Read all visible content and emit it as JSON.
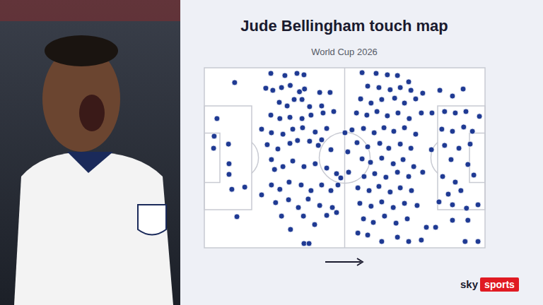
{
  "chart_data": {
    "type": "scatter",
    "title": "Jude Bellingham touch map",
    "subtitle": "World Cup 2026",
    "color": "#1f3a93",
    "tick_labels": false,
    "xlim": [
      0,
      100
    ],
    "ylim": [
      0,
      100
    ],
    "marker": "circle",
    "x": [
      10.8,
      4.5,
      3.5,
      3.3,
      8.6,
      8.8,
      8.8,
      9.8,
      14.4,
      11.6,
      23.7,
      28.7,
      33,
      35.5,
      21.9,
      24.4,
      27.5,
      30.6,
      33.9,
      35.7,
      41.1,
      44.8,
      26.7,
      29.5,
      32,
      34.8,
      37.5,
      41.8,
      46.1,
      23.7,
      26.9,
      30.5,
      34.8,
      38,
      42.3,
      20.4,
      23.9,
      28,
      31.5,
      35,
      39.5,
      43.6,
      22.4,
      26.2,
      30.5,
      33.2,
      37.5,
      40.6,
      45.1,
      23.9,
      25,
      28,
      31.5,
      35.5,
      39.5,
      43.6,
      47.1,
      20.4,
      23.9,
      26.9,
      30.2,
      34.5,
      38,
      41.8,
      45.1,
      47.6,
      25.4,
      30,
      33.5,
      37,
      41.1,
      45.6,
      27.5,
      30.7,
      35.3,
      39.3,
      35.5,
      37.3,
      43.6,
      47.1,
      41.8,
      50.1,
      48.6,
      51.1,
      56.2,
      61.2,
      65.2,
      68.8,
      72.8,
      58.2,
      62.2,
      66.2,
      69.8,
      73.6,
      77.8,
      55.7,
      59.4,
      63.2,
      67.8,
      71.3,
      75.3,
      54.2,
      57.9,
      61.5,
      65.2,
      69,
      73,
      77.3,
      81.1,
      52.6,
      56.7,
      60.5,
      64,
      67.5,
      71.3,
      75.3,
      54.4,
      58.2,
      62.5,
      65.7,
      69.8,
      73.6,
      56.2,
      59.2,
      63.2,
      67.3,
      70.8,
      74.6,
      51.4,
      56.9,
      60.7,
      64.7,
      68.8,
      72.8,
      77.8,
      54.7,
      58.7,
      62.2,
      66.2,
      69.8,
      73.8,
      55.4,
      59.4,
      63.2,
      67.3,
      71.3,
      75.8,
      56.7,
      60.2,
      64.2,
      68.3,
      72.3,
      79.1,
      82.4,
      58.2,
      63.2,
      68.8,
      72.8,
      77.3,
      54.7,
      80.9,
      83.9,
      88.4,
      92.2,
      85.6,
      89.4,
      93.2,
      98,
      84.6,
      88.4,
      92.4,
      95.5,
      85.6,
      90.7,
      94.7,
      87.9,
      93.9,
      84.9,
      89.4,
      96,
      86.9,
      91.4,
      83.6,
      88.4,
      93.4,
      97.5,
      88.4,
      93.9,
      97.5,
      92.9
    ],
    "y": [
      91.8,
      71.8,
      62,
      55.3,
      57.6,
      46.7,
      40.8,
      32.5,
      33.7,
      17.3,
      96.9,
      95.7,
      96.9,
      96.1,
      88.6,
      87.5,
      89,
      90.2,
      86.7,
      88.2,
      86.3,
      86.3,
      80.8,
      78.8,
      82.4,
      82.4,
      78.4,
      78.8,
      75.7,
      73.7,
      71.8,
      72.5,
      71.8,
      73.7,
      74.9,
      65.9,
      63.9,
      63.1,
      65.9,
      66.7,
      64.3,
      66.3,
      57.3,
      54.9,
      58,
      59.6,
      59.2,
      56.9,
      54.5,
      49,
      43.5,
      45.1,
      48.2,
      45.1,
      46.7,
      44.3,
      41.2,
      29.4,
      34.9,
      32.5,
      36.5,
      34.9,
      31.8,
      34.9,
      31.8,
      34.9,
      25.1,
      26.7,
      22.4,
      27.1,
      23.5,
      22.4,
      17.6,
      10.2,
      17.6,
      12.9,
      2.4,
      2.4,
      18,
      19.6,
      60,
      63.9,
      38.8,
      53.3,
      97.3,
      96.9,
      96.1,
      95.7,
      92.2,
      89.8,
      89,
      87.8,
      89,
      87.5,
      85.9,
      82.7,
      80.4,
      82.4,
      83.1,
      80.4,
      82.7,
      74.9,
      73.7,
      75.7,
      73.3,
      74.9,
      71.8,
      74.9,
      74.9,
      65.5,
      66.3,
      63.9,
      66.7,
      64.7,
      66.7,
      63.1,
      58.4,
      56.1,
      58,
      55.3,
      57.6,
      55.3,
      49.4,
      47.5,
      49.8,
      46.7,
      49,
      45.1,
      42,
      39.6,
      41.2,
      39.2,
      42,
      39.6,
      42,
      33.3,
      31.8,
      34.1,
      31,
      33.3,
      31.8,
      24.7,
      23.1,
      25.5,
      22.4,
      24.7,
      23.5,
      16.1,
      14.1,
      17.6,
      13.7,
      16.1,
      11.4,
      11.4,
      7.1,
      3.5,
      5.9,
      3.5,
      4.3,
      8.2,
      54.5,
      87.5,
      84.3,
      88.2,
      75.7,
      74.9,
      75.7,
      73,
      65.9,
      64.7,
      67.1,
      64.7,
      56.9,
      55.3,
      57.6,
      49,
      46.3,
      39.6,
      36.5,
      40.4,
      29.8,
      31.8,
      25.5,
      23.9,
      22,
      23.9,
      15.3,
      15.3,
      3.5,
      3.5
    ]
  },
  "logo": {
    "sky": "sky",
    "sports": "sports"
  }
}
